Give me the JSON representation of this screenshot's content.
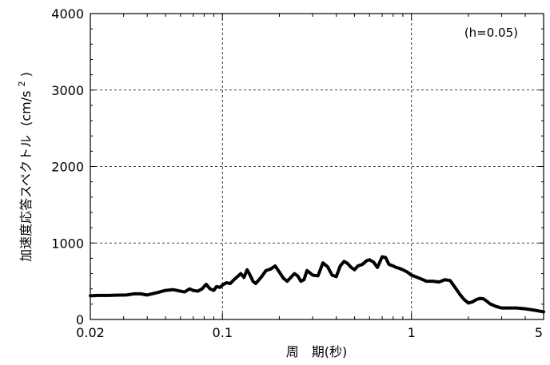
{
  "chart_data": {
    "type": "line",
    "xscale": "log",
    "xlim": [
      0.02,
      5
    ],
    "ylim": [
      0,
      4000
    ],
    "x_ticks": [
      0.02,
      0.1,
      1,
      5
    ],
    "x_tick_labels": [
      "0.02",
      "0.1",
      "1",
      "5"
    ],
    "y_ticks": [
      0,
      1000,
      2000,
      3000,
      4000
    ],
    "y_tick_labels": [
      "0",
      "1000",
      "2000",
      "3000",
      "4000"
    ],
    "xlabel": "周　期(秒)",
    "ylabel_main": "加速度応答スペクトル",
    "ylabel_unit_base": "(cm/s",
    "ylabel_unit_sup": "2",
    "ylabel_unit_close": ")",
    "annotation": "(h=0.05)",
    "grid": true,
    "line_color": "#000000",
    "series": [
      {
        "x": [
          0.02,
          0.022,
          0.025,
          0.028,
          0.031,
          0.034,
          0.037,
          0.04,
          0.045,
          0.05,
          0.055,
          0.06,
          0.063,
          0.067,
          0.07,
          0.074,
          0.078,
          0.082,
          0.086,
          0.09,
          0.093,
          0.097,
          0.1,
          0.105,
          0.11,
          0.115,
          0.12,
          0.125,
          0.13,
          0.135,
          0.14,
          0.145,
          0.15,
          0.16,
          0.17,
          0.18,
          0.19,
          0.2,
          0.21,
          0.22,
          0.23,
          0.24,
          0.25,
          0.26,
          0.27,
          0.28,
          0.3,
          0.32,
          0.34,
          0.36,
          0.38,
          0.4,
          0.42,
          0.44,
          0.46,
          0.48,
          0.5,
          0.52,
          0.55,
          0.58,
          0.6,
          0.63,
          0.66,
          0.7,
          0.73,
          0.76,
          0.8,
          0.83,
          0.86,
          0.9,
          0.95,
          1.0,
          1.1,
          1.2,
          1.3,
          1.4,
          1.5,
          1.6,
          1.7,
          1.8,
          1.9,
          2.0,
          2.1,
          2.2,
          2.3,
          2.4,
          2.5,
          2.6,
          2.8,
          3.0,
          3.3,
          3.6,
          4.0,
          4.5,
          5.0
        ],
        "y": [
          310,
          315,
          315,
          318,
          320,
          335,
          335,
          320,
          350,
          380,
          390,
          370,
          360,
          400,
          380,
          370,
          400,
          460,
          400,
          380,
          430,
          420,
          450,
          480,
          470,
          520,
          560,
          600,
          550,
          650,
          580,
          500,
          470,
          550,
          640,
          660,
          700,
          620,
          540,
          500,
          550,
          600,
          570,
          500,
          520,
          640,
          580,
          570,
          740,
          690,
          580,
          560,
          700,
          760,
          730,
          680,
          650,
          700,
          720,
          770,
          780,
          750,
          680,
          820,
          810,
          720,
          700,
          680,
          670,
          650,
          620,
          580,
          540,
          500,
          500,
          490,
          520,
          510,
          420,
          330,
          260,
          215,
          230,
          260,
          275,
          270,
          240,
          205,
          170,
          150,
          150,
          150,
          140,
          120,
          100
        ]
      }
    ]
  }
}
